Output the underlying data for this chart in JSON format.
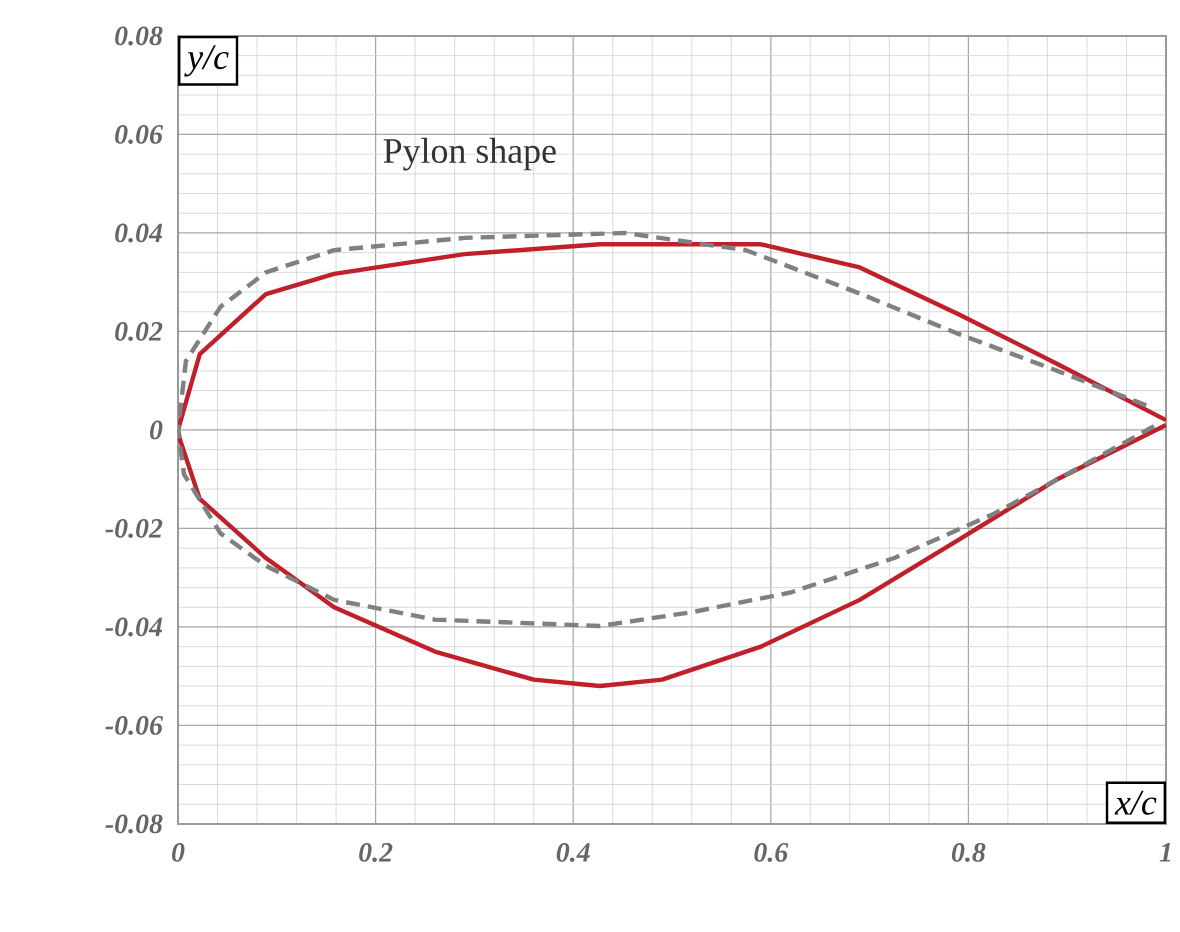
{
  "chart_data": {
    "type": "line",
    "xlabel": "x/c",
    "ylabel": "y/c",
    "annotations": [
      "Pylon shape"
    ],
    "xlim": [
      0,
      1
    ],
    "ylim": [
      -0.08,
      0.08
    ],
    "xticks": [
      0,
      0.2,
      0.4,
      0.6,
      0.8,
      1
    ],
    "yticks": [
      -0.08,
      -0.06,
      -0.04,
      -0.02,
      0,
      0.02,
      0.04,
      0.06,
      0.08
    ],
    "grid": true,
    "marker": "none",
    "series": [
      {
        "color": "#c0202a",
        "line_style": "solid",
        "x": [
          1.0,
          0.89,
          0.79,
          0.69,
          0.59,
          0.427,
          0.29,
          0.158,
          0.089,
          0.022,
          0.0,
          0.002,
          0.022,
          0.089,
          0.158,
          0.26,
          0.36,
          0.427,
          0.49,
          0.59,
          0.69,
          0.79,
          0.89,
          1.0
        ],
        "values": [
          0.002,
          0.0134,
          0.0235,
          0.033,
          0.0377,
          0.0377,
          0.0357,
          0.0317,
          0.0276,
          0.0154,
          0.0,
          -0.002,
          -0.014,
          -0.026,
          -0.036,
          -0.045,
          -0.0507,
          -0.052,
          -0.0507,
          -0.044,
          -0.0345,
          -0.0223,
          -0.01,
          0.001
        ]
      },
      {
        "color": "#808080",
        "line_style": "dashed",
        "x": [
          0.98,
          0.89,
          0.79,
          0.69,
          0.575,
          0.453,
          0.29,
          0.158,
          0.089,
          0.043,
          0.008,
          0.0,
          0.006,
          0.043,
          0.089,
          0.158,
          0.26,
          0.427,
          0.52,
          0.62,
          0.725,
          0.826,
          0.927,
          0.99
        ],
        "values": [
          0.005,
          0.012,
          0.0195,
          0.0277,
          0.0365,
          0.04,
          0.039,
          0.0365,
          0.032,
          0.025,
          0.014,
          0.0,
          -0.009,
          -0.021,
          -0.0276,
          -0.0345,
          -0.0385,
          -0.0398,
          -0.037,
          -0.033,
          -0.026,
          -0.017,
          -0.006,
          0.001
        ]
      }
    ]
  }
}
